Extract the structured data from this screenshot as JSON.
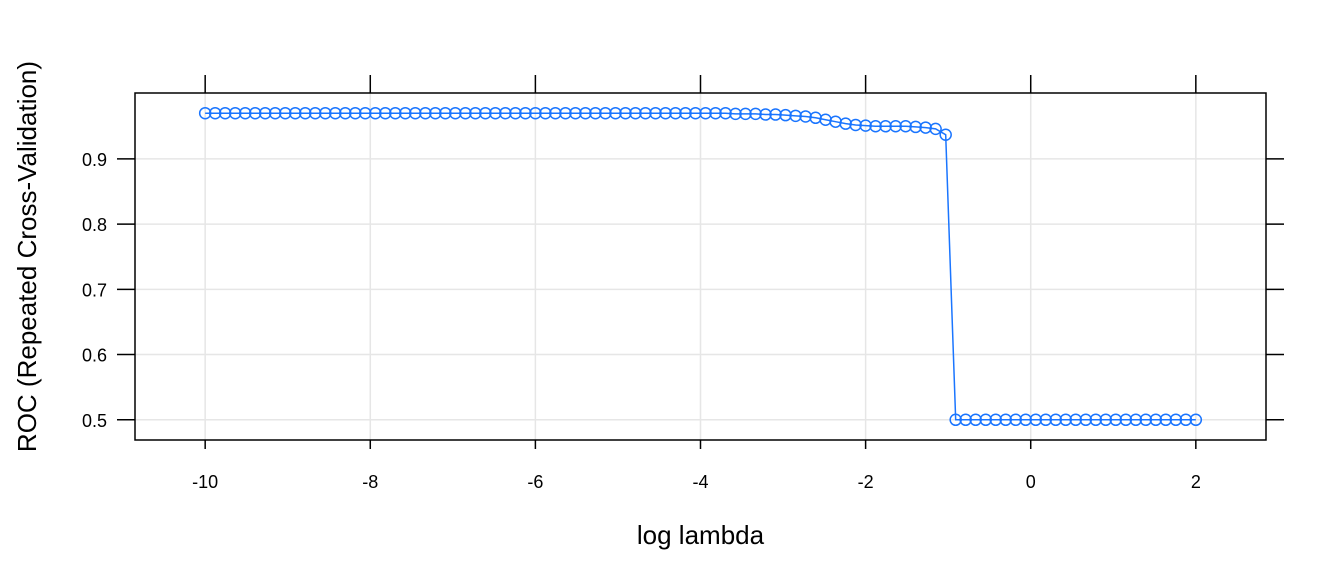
{
  "chart_data": {
    "type": "line",
    "xlabel": "log lambda",
    "ylabel": "ROC (Repeated Cross-Validation)",
    "xlim": [
      -10.85,
      2.85
    ],
    "ylim": [
      0.469,
      1.001
    ],
    "x_ticks": [
      -10,
      -8,
      -6,
      -4,
      -2,
      0,
      2
    ],
    "x_tick_labels": [
      "-10",
      "-8",
      "-6",
      "-4",
      "-2",
      "0",
      "2"
    ],
    "y_ticks": [
      0.5,
      0.6,
      0.7,
      0.8,
      0.9
    ],
    "y_tick_labels": [
      "0.5",
      "0.6",
      "0.7",
      "0.8",
      "0.9"
    ],
    "grid": true,
    "series_color": "#1a75ff",
    "x": [
      -10,
      -9.879,
      -9.758,
      -9.636,
      -9.515,
      -9.394,
      -9.273,
      -9.152,
      -9.03,
      -8.909,
      -8.788,
      -8.667,
      -8.545,
      -8.424,
      -8.303,
      -8.182,
      -8.061,
      -7.939,
      -7.818,
      -7.697,
      -7.576,
      -7.455,
      -7.333,
      -7.212,
      -7.091,
      -6.97,
      -6.848,
      -6.727,
      -6.606,
      -6.485,
      -6.364,
      -6.242,
      -6.121,
      -6,
      -5.879,
      -5.758,
      -5.636,
      -5.515,
      -5.394,
      -5.273,
      -5.152,
      -5.03,
      -4.909,
      -4.788,
      -4.667,
      -4.545,
      -4.424,
      -4.303,
      -4.182,
      -4.061,
      -3.939,
      -3.818,
      -3.697,
      -3.576,
      -3.455,
      -3.333,
      -3.212,
      -3.091,
      -2.97,
      -2.848,
      -2.727,
      -2.606,
      -2.485,
      -2.364,
      -2.242,
      -2.121,
      -2,
      -1.879,
      -1.758,
      -1.636,
      -1.515,
      -1.394,
      -1.273,
      -1.152,
      -1.03,
      -0.909,
      -0.788,
      -0.667,
      -0.545,
      -0.424,
      -0.303,
      -0.182,
      -0.061,
      0.061,
      0.182,
      0.303,
      0.424,
      0.545,
      0.667,
      0.788,
      0.909,
      1.03,
      1.152,
      1.273,
      1.394,
      1.515,
      1.636,
      1.758,
      1.879,
      2
    ],
    "y": [
      0.97,
      0.97,
      0.97,
      0.97,
      0.97,
      0.97,
      0.97,
      0.97,
      0.97,
      0.97,
      0.97,
      0.97,
      0.97,
      0.97,
      0.97,
      0.97,
      0.97,
      0.97,
      0.97,
      0.97,
      0.97,
      0.97,
      0.97,
      0.97,
      0.97,
      0.97,
      0.97,
      0.97,
      0.97,
      0.97,
      0.97,
      0.97,
      0.97,
      0.97,
      0.97,
      0.97,
      0.97,
      0.97,
      0.97,
      0.97,
      0.97,
      0.97,
      0.97,
      0.97,
      0.97,
      0.97,
      0.97,
      0.97,
      0.97,
      0.97,
      0.97,
      0.97,
      0.97,
      0.969,
      0.969,
      0.969,
      0.968,
      0.968,
      0.967,
      0.966,
      0.965,
      0.963,
      0.96,
      0.957,
      0.954,
      0.952,
      0.951,
      0.95,
      0.95,
      0.95,
      0.95,
      0.949,
      0.948,
      0.946,
      0.937,
      0.5,
      0.5,
      0.5,
      0.5,
      0.5,
      0.5,
      0.5,
      0.5,
      0.5,
      0.5,
      0.5,
      0.5,
      0.5,
      0.5,
      0.5,
      0.5,
      0.5,
      0.5,
      0.5,
      0.5,
      0.5,
      0.5,
      0.5,
      0.5,
      0.5
    ]
  }
}
